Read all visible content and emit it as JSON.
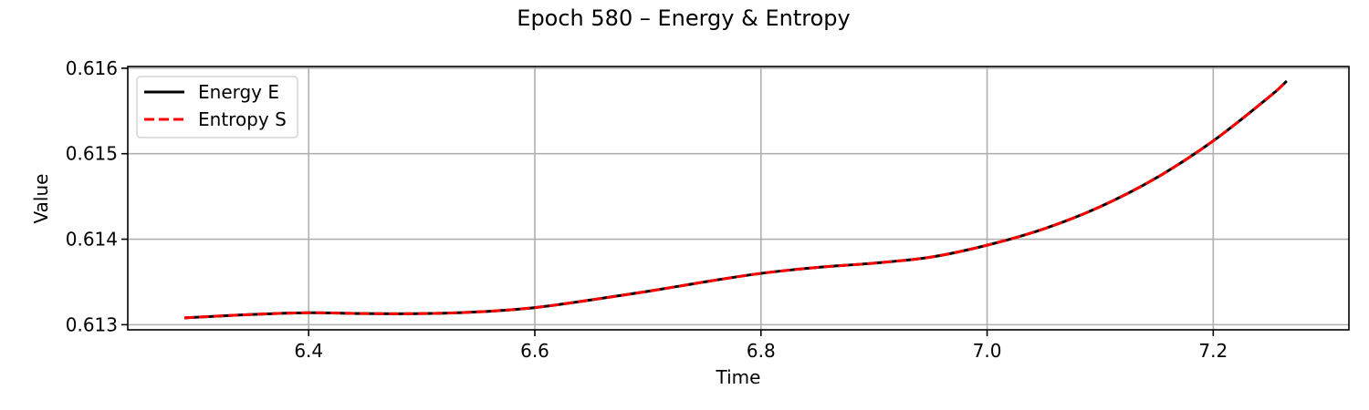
{
  "chart_data": {
    "type": "line",
    "title": "Epoch 580 – Energy & Entropy",
    "xlabel": "Time",
    "ylabel": "Value",
    "xlim": [
      6.24,
      7.32
    ],
    "ylim": [
      0.61294,
      0.61602
    ],
    "xticks": [
      6.4,
      6.6,
      6.8,
      7.0,
      7.2
    ],
    "xtick_labels": [
      "6.4",
      "6.6",
      "6.8",
      "7.0",
      "7.2"
    ],
    "yticks": [
      0.613,
      0.614,
      0.615,
      0.616
    ],
    "ytick_labels": [
      "0.613",
      "0.614",
      "0.615",
      "0.616"
    ],
    "grid": true,
    "legend_position": "upper-left",
    "series": [
      {
        "name": "Energy E",
        "color": "#000000",
        "style": "solid",
        "x": [
          6.29,
          6.35,
          6.4,
          6.45,
          6.5,
          6.55,
          6.6,
          6.65,
          6.7,
          6.75,
          6.8,
          6.85,
          6.9,
          6.95,
          7.0,
          7.05,
          7.1,
          7.15,
          7.2,
          7.25,
          7.265
        ],
        "y": [
          0.61308,
          0.61312,
          0.61314,
          0.61313,
          0.61313,
          0.61315,
          0.6132,
          0.61329,
          0.61339,
          0.6135,
          0.6136,
          0.61367,
          0.61372,
          0.61379,
          0.61393,
          0.61412,
          0.61438,
          0.61472,
          0.61515,
          0.61567,
          0.61585
        ]
      },
      {
        "name": "Entropy S",
        "color": "#ff0000",
        "style": "dashed",
        "x": [
          6.29,
          6.35,
          6.4,
          6.45,
          6.5,
          6.55,
          6.6,
          6.65,
          6.7,
          6.75,
          6.8,
          6.85,
          6.9,
          6.95,
          7.0,
          7.05,
          7.1,
          7.15,
          7.2,
          7.25,
          7.265
        ],
        "y": [
          0.61308,
          0.61312,
          0.61314,
          0.61313,
          0.61313,
          0.61315,
          0.6132,
          0.61329,
          0.61339,
          0.6135,
          0.6136,
          0.61367,
          0.61372,
          0.61379,
          0.61393,
          0.61412,
          0.61438,
          0.61472,
          0.61515,
          0.61567,
          0.61585
        ]
      }
    ]
  }
}
